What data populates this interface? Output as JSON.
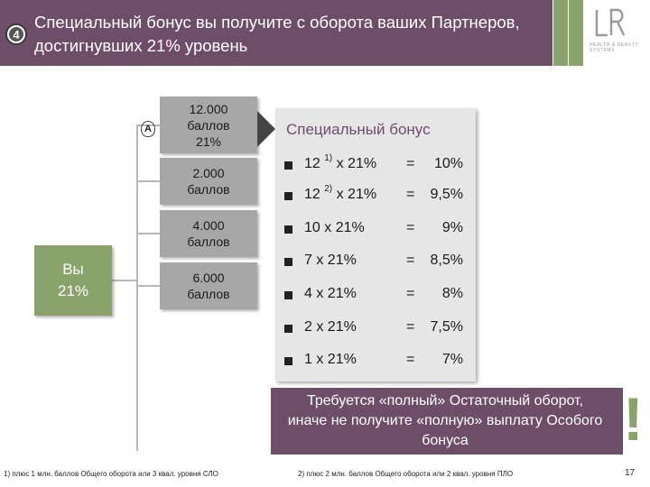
{
  "header": {
    "section_number": "4",
    "title": "Специальный бонус вы получите с оборота ваших Партнеров, достигнувших 21% уровень",
    "logo_letters": "LR",
    "logo_tagline": "HEALTH & BEAUTY SYSTEMS"
  },
  "tree": {
    "a_badge": "A",
    "legs": [
      {
        "line1": "12.000",
        "line2": "баллов",
        "line3": "21%"
      },
      {
        "line1": "2.000",
        "line2": "баллов"
      },
      {
        "line1": "4.000",
        "line2": "баллов"
      },
      {
        "line1": "6.000",
        "line2": "баллов"
      }
    ],
    "you": {
      "line1": "Вы",
      "line2": "21%"
    }
  },
  "bonus_panel": {
    "title": "Специальный бонус",
    "rows": [
      {
        "count": "12",
        "sup": "1)",
        "mult": "x 21%",
        "eq": "=",
        "result": "10%"
      },
      {
        "count": "12",
        "sup": "2)",
        "mult": "x 21%",
        "eq": "=",
        "result": "9,5%"
      },
      {
        "count": "10",
        "sup": "",
        "mult": "x 21%",
        "eq": "=",
        "result": "9%"
      },
      {
        "count": "7",
        "sup": "",
        "mult": "x 21%",
        "eq": "=",
        "result": "8,5%"
      },
      {
        "count": "4",
        "sup": "",
        "mult": "x 21%",
        "eq": "=",
        "result": "8%"
      },
      {
        "count": "2",
        "sup": "",
        "mult": "x 21%",
        "eq": "=",
        "result": "7,5%"
      },
      {
        "count": "1",
        "sup": "",
        "mult": "x 21%",
        "eq": "=",
        "result": "7%"
      }
    ]
  },
  "note": {
    "text": "Требуется «полный» Остаточный оборот, иначе не получите «полную» выплату Особого бонуса",
    "mark": "!"
  },
  "footnotes": {
    "f1": "1)  плюс 1 млн. баллов Общего оборота или 3 квал. уровня СЛО",
    "f2": "2)  плюс 2 млн. баллов Общего оборота или 2 квал. уровня ПЛО"
  },
  "page_number": "17",
  "colors": {
    "purple": "#6e4d69",
    "green": "#8aa36a",
    "grey_box": "#a7a7a7",
    "panel_bg": "#e6e6e6"
  }
}
